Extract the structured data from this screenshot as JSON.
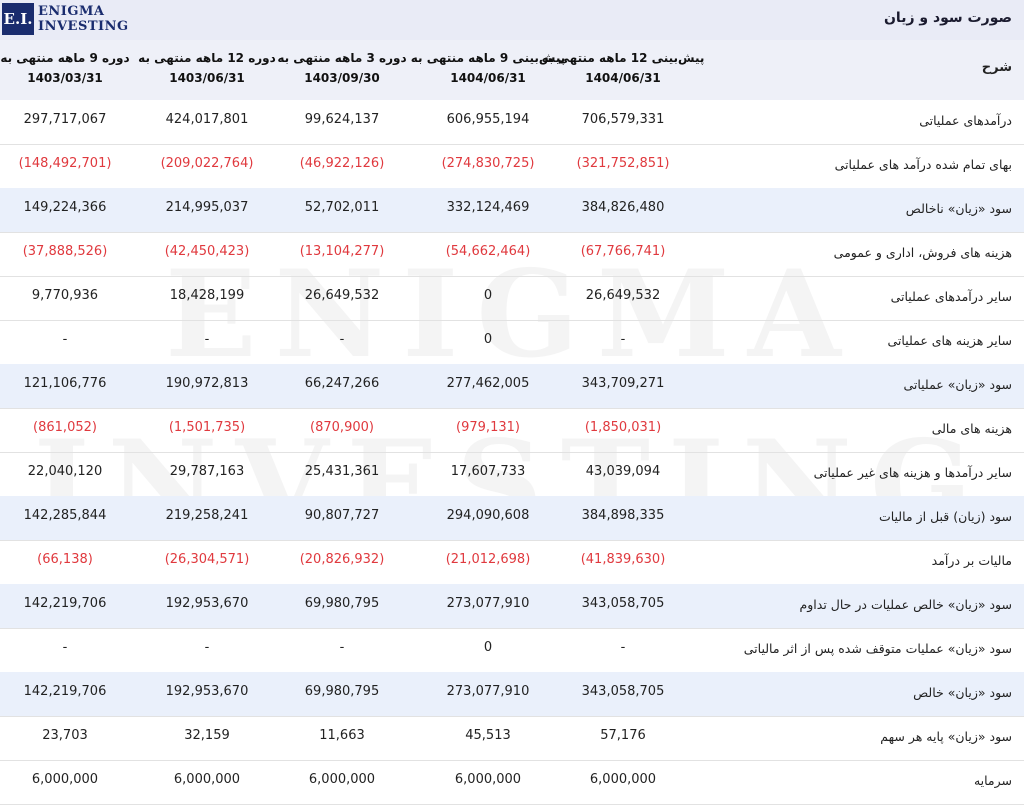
{
  "logo": {
    "mark": "E.I.",
    "line1": "ENIGMA",
    "line2": "INVESTING"
  },
  "title": "صورت سود و زیان",
  "header": {
    "label": "شرح",
    "columns": [
      {
        "line1": "پیش‌بینی 12 ماهه منتهی به",
        "line2": "1404/06/31"
      },
      {
        "line1": "پیش‌بینی 9 ماهه منتهی به",
        "line2": "1404/06/31"
      },
      {
        "line1": "دوره 3 ماهه منتهی به",
        "line2": "1403/09/30"
      },
      {
        "line1": "دوره 12 ماهه منتهی به",
        "line2": "1403/06/31"
      },
      {
        "line1": "دوره 9 ماهه منتهی به",
        "line2": "1403/03/31"
      }
    ]
  },
  "rows": [
    {
      "label": "درآمدهای عملیاتی",
      "values": [
        "706,579,331",
        "606,955,194",
        "99,624,137",
        "424,017,801",
        "297,717,067"
      ]
    },
    {
      "label": "بهای تمام شده درآمد های عملیاتی",
      "values": [
        "(321,752,851)",
        "(274,830,725)",
        "(46,922,126)",
        "(209,022,764)",
        "(148,492,701)"
      ]
    },
    {
      "label": "سود «زیان» ناخالص",
      "values": [
        "384,826,480",
        "332,124,469",
        "52,702,011",
        "214,995,037",
        "149,224,366"
      ]
    },
    {
      "label": "هزینه های فروش، اداری و عمومی",
      "values": [
        "(67,766,741)",
        "(54,662,464)",
        "(13,104,277)",
        "(42,450,423)",
        "(37,888,526)"
      ]
    },
    {
      "label": "سایر درآمدهای عملیاتی",
      "values": [
        "26,649,532",
        "0",
        "26,649,532",
        "18,428,199",
        "9,770,936"
      ]
    },
    {
      "label": "سایر هزینه های عملیاتی",
      "values": [
        "-",
        "0",
        "-",
        "-",
        "-"
      ]
    },
    {
      "label": "سود «زیان» عملیاتی",
      "values": [
        "343,709,271",
        "277,462,005",
        "66,247,266",
        "190,972,813",
        "121,106,776"
      ]
    },
    {
      "label": "هزینه های مالی",
      "values": [
        "(1,850,031)",
        "(979,131)",
        "(870,900)",
        "(1,501,735)",
        "(861,052)"
      ]
    },
    {
      "label": "سایر درآمدها و هزینه های غیر عملیاتی",
      "values": [
        "43,039,094",
        "17,607,733",
        "25,431,361",
        "29,787,163",
        "22,040,120"
      ]
    },
    {
      "label": "سود (زیان) قبل از مالیات",
      "values": [
        "384,898,335",
        "294,090,608",
        "90,807,727",
        "219,258,241",
        "142,285,844"
      ]
    },
    {
      "label": "مالیات بر درآمد",
      "values": [
        "(41,839,630)",
        "(21,012,698)",
        "(20,826,932)",
        "(26,304,571)",
        "(66,138)"
      ]
    },
    {
      "label": "سود «زیان» خالص عملیات در حال تداوم",
      "values": [
        "343,058,705",
        "273,077,910",
        "69,980,795",
        "192,953,670",
        "142,219,706"
      ]
    },
    {
      "label": "سود «زیان» عملیات متوقف شده پس از اثر مالیاتی",
      "values": [
        "-",
        "0",
        "-",
        "-",
        "-"
      ]
    },
    {
      "label": "سود «زیان» خالص",
      "values": [
        "343,058,705",
        "273,077,910",
        "69,980,795",
        "192,953,670",
        "142,219,706"
      ]
    },
    {
      "label": "سود «زیان» پایه هر سهم",
      "values": [
        "57,176",
        "45,513",
        "11,663",
        "32,159",
        "23,703"
      ]
    },
    {
      "label": "سرمایه",
      "values": [
        "6,000,000",
        "6,000,000",
        "6,000,000",
        "6,000,000",
        "6,000,000"
      ]
    }
  ],
  "shaded_rows": [
    2,
    6,
    9,
    11,
    13
  ],
  "colors": {
    "negative": "#e0393e",
    "shade": "#eaf0fb",
    "brand": "#1a2c6e"
  },
  "watermark": {
    "line1": "ENIGMA",
    "line2": "INVESTING"
  }
}
